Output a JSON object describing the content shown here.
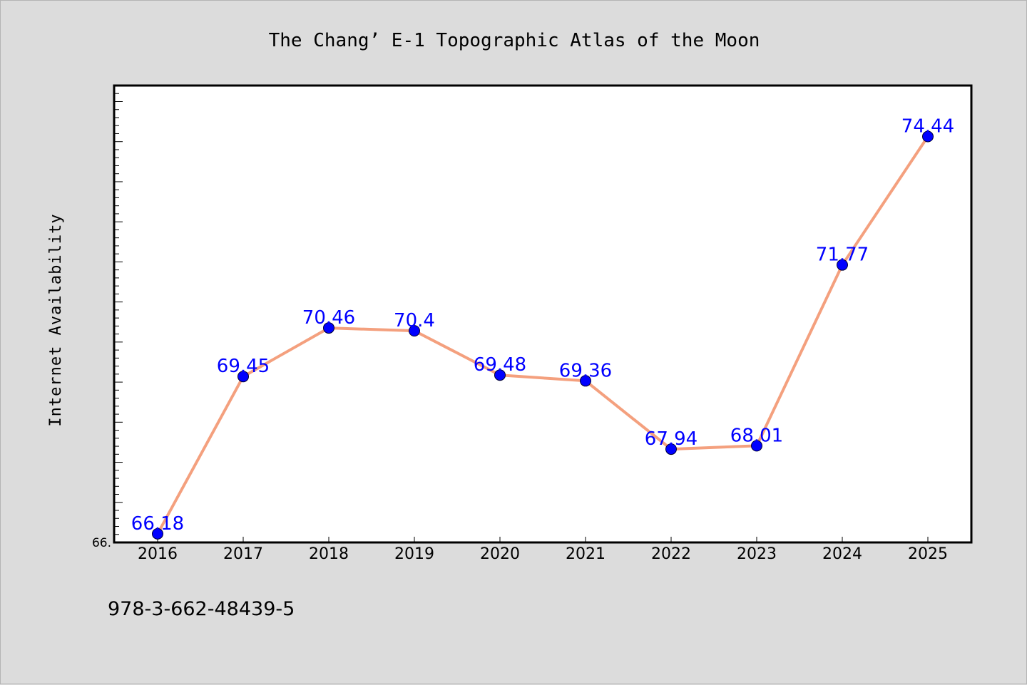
{
  "chart_data": {
    "type": "line",
    "title": "The Chang’ E-1 Topographic Atlas of the Moon",
    "xlabel": "",
    "ylabel": "Internet Availability",
    "categories": [
      "2016",
      "2017",
      "2018",
      "2019",
      "2020",
      "2021",
      "2022",
      "2023",
      "2024",
      "2025"
    ],
    "series": [
      {
        "values": [
          66.18,
          69.45,
          70.46,
          70.4,
          69.48,
          69.36,
          67.94,
          68.01,
          71.77,
          74.44
        ],
        "labels": [
          "66.18",
          "69.45",
          "70.46",
          "70.4",
          "69.48",
          "69.36",
          "67.94",
          "68.01",
          "71.77",
          "74.44"
        ],
        "line_color": "#f4a07e",
        "marker_color": "#0000ff"
      }
    ],
    "ylim": [
      66.0,
      75.5
    ],
    "ytick_label": "66.",
    "grid": false,
    "legend": "none"
  },
  "footer": {
    "isbn": "978-3-662-48439-5"
  },
  "colors": {
    "background": "#dcdcdc",
    "plot_area": "#ffffff",
    "data_label": "#0000ff"
  }
}
